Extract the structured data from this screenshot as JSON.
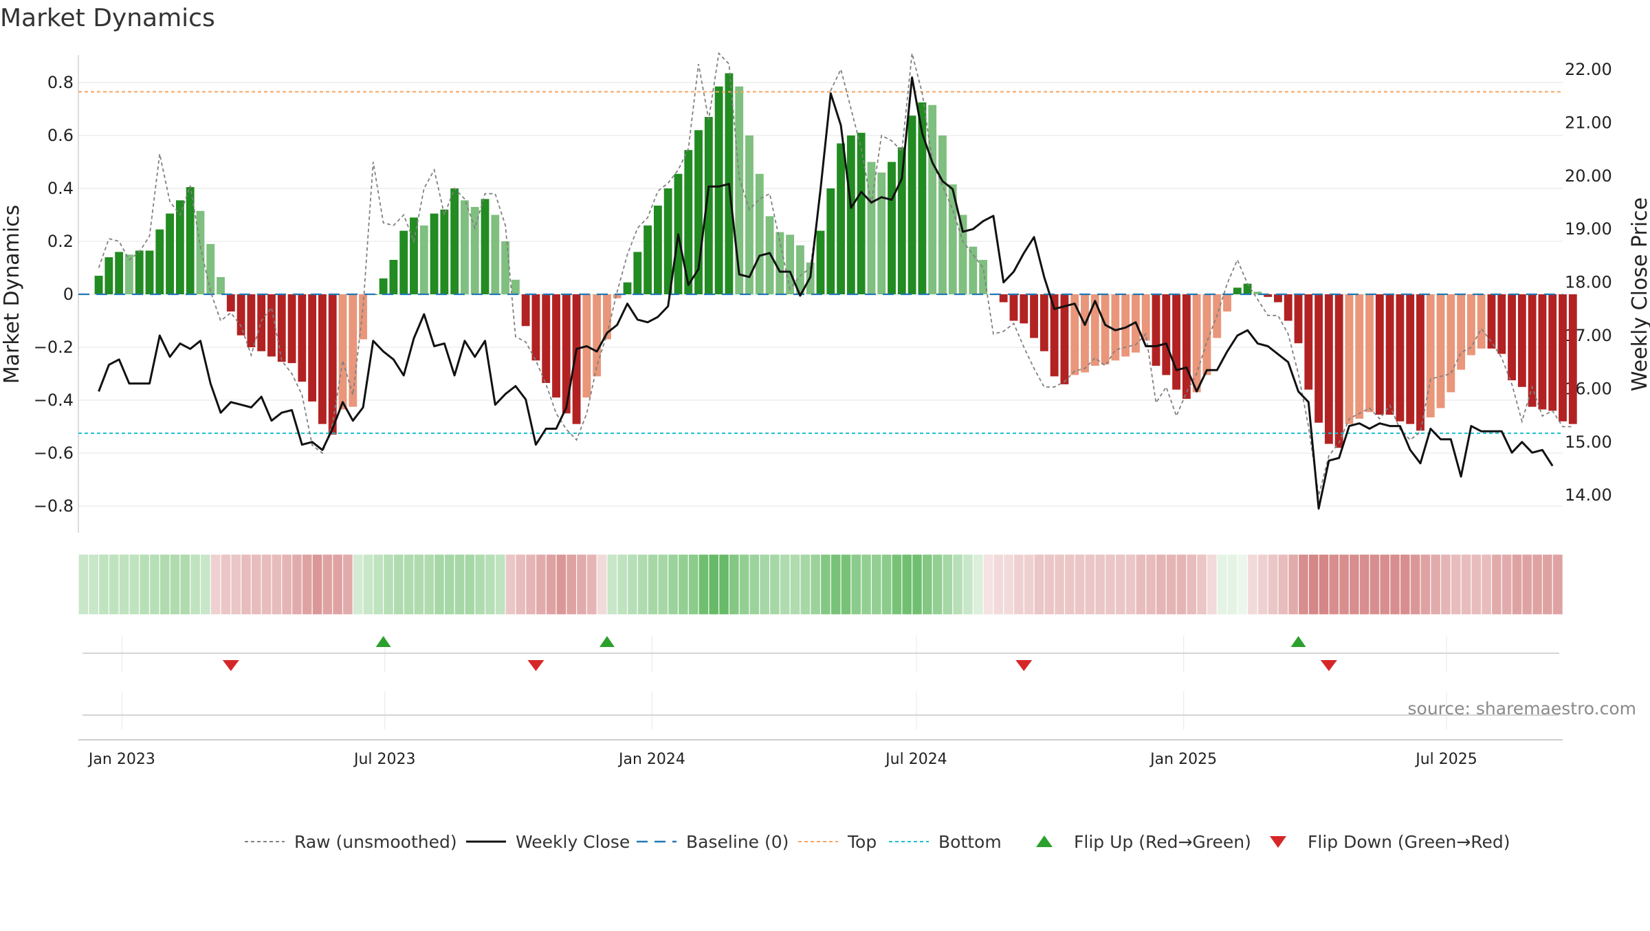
{
  "title": "Market Dynamics",
  "source": "source: sharemaestro.com",
  "colors": {
    "green_strong": "#228b22",
    "green_light": "#7fbf7f",
    "red_strong": "#b22222",
    "red_light": "#e9967a",
    "raw": "#808080",
    "close": "#111111",
    "baseline": "#1f77b4",
    "top": "#f4a460",
    "bottom": "#17becf",
    "flip_up": "#2ca02c",
    "flip_down": "#d62728"
  },
  "legend": [
    {
      "label": "Raw (unsmoothed)",
      "style": "raw"
    },
    {
      "label": "Weekly Close",
      "style": "close"
    },
    {
      "label": "Baseline (0)",
      "style": "baseline"
    },
    {
      "label": "Top",
      "style": "top"
    },
    {
      "label": "Bottom",
      "style": "bottom"
    },
    {
      "label": "Flip Up (Red→Green)",
      "style": "flip_up"
    },
    {
      "label": "Flip Down (Green→Red)",
      "style": "flip_down"
    }
  ],
  "chart_data": {
    "type": "bar",
    "x_axis": {
      "type": "date",
      "start": "2022-12-16",
      "step_days": 7,
      "range": [
        "2022-12-02",
        "2025-09-19"
      ],
      "ticks": [
        {
          "date": "2023-01-01",
          "label": "Jan 2023"
        },
        {
          "date": "2023-07-01",
          "label": "Jul 2023"
        },
        {
          "date": "2024-01-01",
          "label": "Jan 2024"
        },
        {
          "date": "2024-07-01",
          "label": "Jul 2024"
        },
        {
          "date": "2025-01-01",
          "label": "Jan 2025"
        },
        {
          "date": "2025-07-01",
          "label": "Jul 2025"
        }
      ]
    },
    "left_axis": {
      "label": "Market Dynamics",
      "range": [
        -0.9,
        0.9
      ],
      "ticks": [
        {
          "v": 0.8,
          "label": "0.8"
        },
        {
          "v": 0.6,
          "label": "0.6"
        },
        {
          "v": 0.4,
          "label": "0.4"
        },
        {
          "v": 0.2,
          "label": "0.2"
        },
        {
          "v": 0,
          "label": "0"
        },
        {
          "v": -0.2,
          "label": "−0.2"
        },
        {
          "v": -0.4,
          "label": "−0.4"
        },
        {
          "v": -0.6,
          "label": "−0.6"
        },
        {
          "v": -0.8,
          "label": "−0.8"
        }
      ]
    },
    "right_axis": {
      "label": "Weekly Close Price",
      "range": [
        13.27,
        22.42
      ],
      "ticks": [
        {
          "v": 22,
          "label": "22.00"
        },
        {
          "v": 21,
          "label": "21.00"
        },
        {
          "v": 20,
          "label": "20.00"
        },
        {
          "v": 19,
          "label": "19.00"
        },
        {
          "v": 18,
          "label": "18.00"
        },
        {
          "v": 17,
          "label": "17.00"
        },
        {
          "v": 16,
          "label": "16.00"
        },
        {
          "v": 15,
          "label": "15.00"
        },
        {
          "v": 14,
          "label": "14.00"
        }
      ]
    },
    "top_level": 0.765,
    "bottom_level": -0.525,
    "baseline": 0,
    "grid": true,
    "legend_position": "bottom",
    "series": [
      {
        "name": "Market Dynamics",
        "kind": "bar",
        "values": [
          0.07,
          0.14,
          0.16,
          0.15,
          0.165,
          0.165,
          0.245,
          0.305,
          0.355,
          0.405,
          0.315,
          0.19,
          0.065,
          -0.065,
          -0.155,
          -0.2,
          -0.215,
          -0.235,
          -0.255,
          -0.26,
          -0.33,
          -0.405,
          -0.49,
          -0.53,
          -0.435,
          -0.425,
          -0.17,
          0,
          0.06,
          0.13,
          0.24,
          0.29,
          0.26,
          0.305,
          0.32,
          0.4,
          0.355,
          0.33,
          0.36,
          0.3,
          0.2,
          0.055,
          -0.12,
          -0.25,
          -0.335,
          -0.39,
          -0.45,
          -0.49,
          -0.39,
          -0.31,
          -0.17,
          -0.015,
          0.045,
          0.16,
          0.26,
          0.335,
          0.4,
          0.455,
          0.545,
          0.62,
          0.67,
          0.785,
          0.835,
          0.785,
          0.6,
          0.455,
          0.295,
          0.235,
          0.225,
          0.185,
          0.12,
          0.24,
          0.4,
          0.57,
          0.6,
          0.61,
          0.5,
          0.46,
          0.5,
          0.555,
          0.675,
          0.725,
          0.715,
          0.6,
          0.415,
          0.3,
          0.18,
          0.13,
          0,
          -0.03,
          -0.1,
          -0.11,
          -0.165,
          -0.215,
          -0.31,
          -0.34,
          -0.305,
          -0.295,
          -0.27,
          -0.265,
          -0.25,
          -0.235,
          -0.22,
          -0.175,
          -0.27,
          -0.305,
          -0.36,
          -0.395,
          -0.37,
          -0.305,
          -0.165,
          -0.065,
          0.025,
          0.04,
          0.01,
          -0.01,
          -0.03,
          -0.1,
          -0.185,
          -0.36,
          -0.485,
          -0.565,
          -0.58,
          -0.49,
          -0.47,
          -0.445,
          -0.455,
          -0.455,
          -0.48,
          -0.49,
          -0.515,
          -0.465,
          -0.43,
          -0.37,
          -0.285,
          -0.23,
          -0.205,
          -0.205,
          -0.225,
          -0.325,
          -0.35,
          -0.425,
          -0.435,
          -0.44,
          -0.48,
          -0.49
        ]
      },
      {
        "name": "Raw (unsmoothed)",
        "kind": "line",
        "axis": "left",
        "values": [
          0.1,
          0.21,
          0.2,
          0.13,
          0.16,
          0.22,
          0.53,
          0.35,
          0.3,
          0.41,
          0.18,
          0.01,
          -0.1,
          -0.07,
          -0.12,
          -0.23,
          -0.1,
          -0.05,
          -0.25,
          -0.3,
          -0.38,
          -0.57,
          -0.6,
          -0.49,
          -0.25,
          -0.38,
          -0.05,
          0.5,
          0.27,
          0.26,
          0.3,
          0.2,
          0.4,
          0.47,
          0.3,
          0.4,
          0.36,
          0.25,
          0.38,
          0.38,
          0.26,
          -0.16,
          -0.18,
          -0.25,
          -0.34,
          -0.45,
          -0.51,
          -0.55,
          -0.45,
          -0.27,
          -0.15,
          0.01,
          0.15,
          0.25,
          0.29,
          0.39,
          0.42,
          0.47,
          0.55,
          0.87,
          0.66,
          0.91,
          0.87,
          0.44,
          0.32,
          0.36,
          0.38,
          0.2,
          0.02,
          0.07,
          0.1,
          0.38,
          0.77,
          0.85,
          0.7,
          0.55,
          0.34,
          0.6,
          0.58,
          0.54,
          0.91,
          0.76,
          0.5,
          0.41,
          0.32,
          0.2,
          0.15,
          0.1,
          -0.15,
          -0.14,
          -0.11,
          -0.2,
          -0.28,
          -0.35,
          -0.35,
          -0.33,
          -0.29,
          -0.28,
          -0.24,
          -0.27,
          -0.21,
          -0.2,
          -0.19,
          -0.15,
          -0.41,
          -0.35,
          -0.46,
          -0.37,
          -0.3,
          -0.18,
          -0.08,
          0.04,
          0.13,
          0.04,
          -0.02,
          -0.08,
          -0.08,
          -0.15,
          -0.3,
          -0.5,
          -0.76,
          -0.61,
          -0.56,
          -0.47,
          -0.45,
          -0.43,
          -0.47,
          -0.42,
          -0.51,
          -0.55,
          -0.52,
          -0.32,
          -0.31,
          -0.3,
          -0.22,
          -0.2,
          -0.13,
          -0.18,
          -0.24,
          -0.34,
          -0.48,
          -0.35,
          -0.46,
          -0.44,
          -0.5,
          -0.5
        ]
      },
      {
        "name": "Weekly Close",
        "kind": "line",
        "axis": "right",
        "values": [
          15.95,
          16.45,
          16.55,
          16.1,
          16.1,
          16.1,
          17.0,
          16.6,
          16.85,
          16.75,
          16.9,
          16.1,
          15.55,
          15.75,
          15.7,
          15.65,
          15.85,
          15.4,
          15.55,
          15.6,
          14.95,
          15.0,
          14.85,
          15.25,
          15.75,
          15.4,
          15.65,
          16.9,
          16.7,
          16.55,
          16.25,
          16.95,
          17.4,
          16.8,
          16.85,
          16.25,
          16.9,
          16.6,
          16.9,
          15.7,
          15.9,
          16.05,
          15.8,
          14.95,
          15.25,
          15.25,
          15.65,
          16.75,
          16.8,
          16.7,
          17.05,
          17.2,
          17.6,
          17.3,
          17.25,
          17.35,
          17.55,
          18.9,
          17.95,
          18.25,
          19.8,
          19.8,
          19.85,
          18.15,
          18.1,
          18.5,
          18.55,
          18.2,
          18.2,
          17.75,
          18.1,
          19.75,
          21.55,
          20.95,
          19.4,
          19.7,
          19.5,
          19.6,
          19.55,
          19.95,
          21.85,
          20.8,
          20.25,
          19.9,
          19.75,
          18.95,
          19.0,
          19.15,
          19.25,
          18.0,
          18.2,
          18.55,
          18.85,
          18.1,
          17.5,
          17.55,
          17.6,
          17.2,
          17.65,
          17.2,
          17.1,
          17.15,
          17.25,
          16.8,
          16.8,
          16.85,
          16.35,
          16.4,
          15.95,
          16.35,
          16.35,
          16.7,
          17.0,
          17.1,
          16.85,
          16.8,
          16.65,
          16.5,
          15.95,
          15.75,
          13.75,
          14.65,
          14.7,
          15.3,
          15.35,
          15.25,
          15.35,
          15.3,
          15.3,
          14.85,
          14.6,
          15.25,
          15.05,
          15.05,
          14.35,
          15.3,
          15.2,
          15.2,
          15.2,
          14.8,
          15.0,
          14.8,
          14.85,
          14.55
        ]
      }
    ],
    "regime_strip": {
      "label": "",
      "values": [
        0.3,
        0.3,
        0.35,
        0.35,
        0.35,
        0.35,
        0.4,
        0.4,
        0.45,
        0.45,
        0.45,
        0.35,
        0.3,
        -0.25,
        -0.3,
        -0.3,
        -0.35,
        -0.35,
        -0.35,
        -0.35,
        -0.4,
        -0.45,
        -0.5,
        -0.55,
        -0.5,
        -0.5,
        -0.45,
        0.25,
        0.3,
        0.35,
        0.4,
        0.45,
        0.45,
        0.45,
        0.45,
        0.5,
        0.5,
        0.5,
        0.5,
        0.45,
        0.4,
        0.35,
        -0.3,
        -0.35,
        -0.4,
        -0.45,
        -0.5,
        -0.55,
        -0.5,
        -0.45,
        -0.4,
        -0.2,
        0.3,
        0.35,
        0.4,
        0.45,
        0.5,
        0.5,
        0.55,
        0.6,
        0.65,
        0.8,
        0.85,
        0.85,
        0.7,
        0.6,
        0.55,
        0.5,
        0.5,
        0.45,
        0.45,
        0.5,
        0.55,
        0.7,
        0.75,
        0.75,
        0.65,
        0.6,
        0.6,
        0.65,
        0.75,
        0.8,
        0.8,
        0.7,
        0.6,
        0.5,
        0.4,
        0.3,
        0.2,
        -0.15,
        -0.2,
        -0.2,
        -0.25,
        -0.25,
        -0.3,
        -0.3,
        -0.3,
        -0.3,
        -0.3,
        -0.3,
        -0.3,
        -0.3,
        -0.3,
        -0.3,
        -0.35,
        -0.35,
        -0.4,
        -0.4,
        -0.4,
        -0.35,
        -0.3,
        -0.2,
        0.15,
        0.15,
        0.1,
        -0.2,
        -0.25,
        -0.3,
        -0.35,
        -0.45,
        -0.6,
        -0.65,
        -0.65,
        -0.6,
        -0.6,
        -0.6,
        -0.6,
        -0.6,
        -0.6,
        -0.6,
        -0.6,
        -0.55,
        -0.5,
        -0.45,
        -0.4,
        -0.35,
        -0.35,
        -0.35,
        -0.35,
        -0.45,
        -0.45,
        -0.5,
        -0.5,
        -0.5,
        -0.5,
        -0.5
      ]
    },
    "flips": {
      "up": [
        "2023-06-30",
        "2023-12-01",
        "2025-03-21"
      ],
      "down": [
        "2023-03-17",
        "2023-10-13",
        "2024-09-13",
        "2025-04-11"
      ]
    }
  }
}
